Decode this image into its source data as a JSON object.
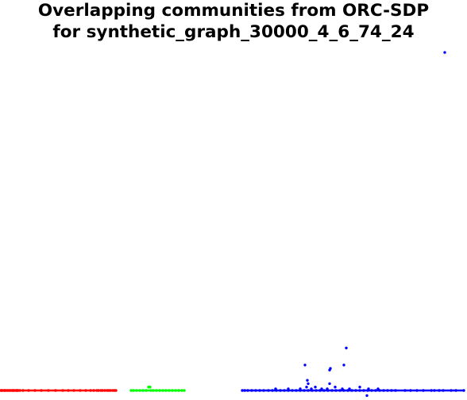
{
  "title": {
    "line1": "Overlapping communities from ORC-SDP",
    "line2": "for synthetic_graph_30000_4_6_74_24"
  },
  "chart_data": {
    "type": "scatter",
    "title": "Overlapping communities from ORC-SDP for synthetic_graph_30000_4_6_74_24",
    "xlabel": "",
    "ylabel": "",
    "axes_visible": false,
    "grid": false,
    "legend": "none",
    "series": [
      {
        "color": "#ff0000",
        "points": [
          [
            0.01,
            0.0
          ],
          [
            0.02,
            0.0
          ],
          [
            0.03,
            0.0
          ],
          [
            0.05,
            0.0
          ],
          [
            0.06,
            0.0
          ],
          [
            0.07,
            0.0
          ],
          [
            0.09,
            0.0
          ],
          [
            0.1,
            0.0
          ],
          [
            0.12,
            0.0
          ],
          [
            0.13,
            0.0
          ],
          [
            0.15,
            0.0
          ],
          [
            0.16,
            0.0
          ],
          [
            0.17,
            0.0
          ],
          [
            0.18,
            0.0
          ],
          [
            0.2,
            0.0
          ],
          [
            0.21,
            0.0
          ],
          [
            0.22,
            0.0
          ],
          [
            0.23,
            0.0
          ],
          [
            0.25,
            0.0
          ],
          [
            0.29,
            0.0
          ],
          [
            0.36,
            0.0
          ],
          [
            0.44,
            0.0
          ],
          [
            0.52,
            0.0
          ],
          [
            0.61,
            0.0
          ],
          [
            0.7,
            0.0
          ],
          [
            0.79,
            0.0
          ],
          [
            0.86,
            0.0
          ],
          [
            0.93,
            0.0
          ],
          [
            1.01,
            0.0
          ],
          [
            1.08,
            0.0
          ],
          [
            1.14,
            0.0
          ],
          [
            1.18,
            0.0
          ],
          [
            1.22,
            0.0
          ],
          [
            1.24,
            0.0
          ],
          [
            1.27,
            0.0
          ],
          [
            1.29,
            0.0
          ],
          [
            1.32,
            0.0
          ],
          [
            1.35,
            0.0
          ],
          [
            1.37,
            0.0
          ],
          [
            1.39,
            0.0
          ],
          [
            1.42,
            0.0
          ],
          [
            1.44,
            0.0
          ],
          [
            1.46,
            0.0
          ]
        ]
      },
      {
        "color": "#00ff00",
        "points": [
          [
            1.65,
            0.0
          ],
          [
            1.68,
            0.0
          ],
          [
            1.72,
            0.0
          ],
          [
            1.76,
            0.0
          ],
          [
            1.8,
            0.0
          ],
          [
            1.84,
            0.0
          ],
          [
            1.87,
            0.01
          ],
          [
            1.88,
            0.01
          ],
          [
            1.89,
            0.01
          ],
          [
            1.9,
            0.0
          ],
          [
            1.93,
            0.0
          ],
          [
            1.97,
            0.0
          ],
          [
            2.01,
            0.0
          ],
          [
            2.05,
            0.0
          ],
          [
            2.09,
            0.0
          ],
          [
            2.13,
            0.0
          ],
          [
            2.17,
            0.0
          ],
          [
            2.21,
            0.0
          ],
          [
            2.25,
            0.0
          ],
          [
            2.29,
            0.0
          ],
          [
            2.32,
            0.0
          ]
        ]
      },
      {
        "color": "#0000ff",
        "points": [
          [
            3.05,
            0.0
          ],
          [
            3.08,
            0.0
          ],
          [
            3.12,
            0.0
          ],
          [
            3.17,
            0.0
          ],
          [
            3.22,
            0.0
          ],
          [
            3.27,
            0.0
          ],
          [
            3.32,
            0.0
          ],
          [
            3.38,
            0.0
          ],
          [
            3.43,
            0.0
          ],
          [
            3.48,
            0.0
          ],
          [
            3.53,
            0.0
          ],
          [
            3.58,
            0.0
          ],
          [
            3.63,
            0.0
          ],
          [
            3.68,
            0.0
          ],
          [
            3.73,
            0.0
          ],
          [
            3.78,
            0.0
          ],
          [
            3.83,
            0.0
          ],
          [
            3.88,
            0.0
          ],
          [
            3.93,
            0.0
          ],
          [
            3.98,
            0.0
          ],
          [
            4.03,
            0.0
          ],
          [
            4.08,
            0.0
          ],
          [
            4.13,
            0.0
          ],
          [
            4.18,
            0.0
          ],
          [
            4.23,
            0.0
          ],
          [
            4.28,
            0.0
          ],
          [
            4.33,
            0.0
          ],
          [
            4.38,
            0.0
          ],
          [
            4.43,
            0.0
          ],
          [
            4.48,
            0.0
          ],
          [
            4.53,
            0.0
          ],
          [
            4.58,
            0.0
          ],
          [
            4.63,
            0.0
          ],
          [
            4.68,
            0.0
          ],
          [
            4.73,
            0.0
          ],
          [
            4.78,
            0.0
          ],
          [
            4.83,
            0.0
          ],
          [
            4.88,
            0.0
          ],
          [
            4.93,
            0.0
          ],
          [
            4.98,
            0.0
          ],
          [
            5.1,
            0.0
          ],
          [
            5.17,
            0.0
          ],
          [
            5.25,
            0.0
          ],
          [
            5.33,
            0.0
          ],
          [
            5.43,
            0.0
          ],
          [
            5.47,
            0.0
          ],
          [
            5.53,
            0.0
          ],
          [
            5.58,
            0.0
          ],
          [
            5.68,
            0.0
          ],
          [
            5.74,
            0.0
          ],
          [
            5.84,
            0.0
          ],
          [
            3.47,
            0.005
          ],
          [
            3.63,
            0.005
          ],
          [
            3.78,
            0.005
          ],
          [
            3.86,
            0.01
          ],
          [
            3.92,
            0.005
          ],
          [
            3.97,
            0.01
          ],
          [
            4.05,
            0.005
          ],
          [
            4.12,
            0.005
          ],
          [
            4.22,
            0.01
          ],
          [
            4.31,
            0.005
          ],
          [
            4.4,
            0.005
          ],
          [
            4.53,
            0.01
          ],
          [
            4.64,
            0.005
          ],
          [
            4.76,
            0.005
          ],
          [
            3.87,
            0.03
          ],
          [
            3.88,
            0.02
          ],
          [
            4.15,
            0.02
          ],
          [
            4.62,
            -0.015
          ],
          [
            3.84,
            0.075
          ],
          [
            4.15,
            0.06
          ],
          [
            4.16,
            0.065
          ],
          [
            4.33,
            0.075
          ],
          [
            4.36,
            0.125
          ],
          [
            5.6,
            0.995
          ]
        ]
      }
    ],
    "xlim": [
      0.0,
      5.88
    ],
    "ylim": [
      0.0,
      1.0
    ]
  }
}
